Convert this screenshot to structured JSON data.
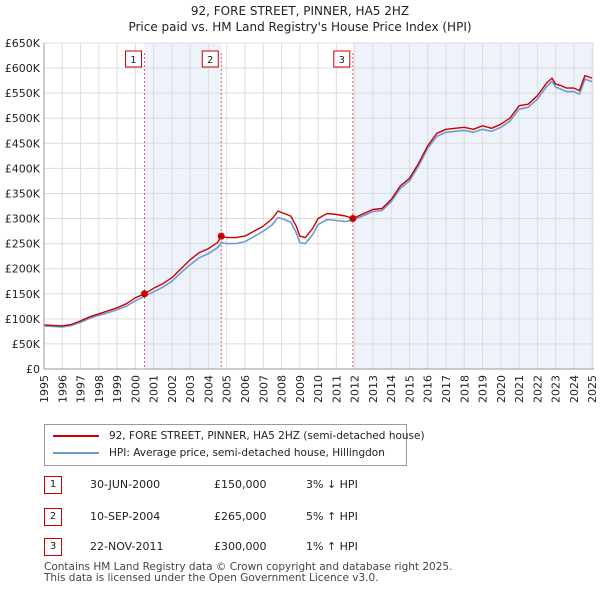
{
  "header": {
    "title": "92, FORE STREET, PINNER, HA5 2HZ",
    "subtitle": "Price paid vs. HM Land Registry's House Price Index (HPI)"
  },
  "chart_data": {
    "type": "line",
    "title": "92, FORE STREET, PINNER, HA5 2HZ",
    "subtitle": "Price paid vs. HM Land Registry's House Price Index (HPI)",
    "xlabel": "",
    "ylabel": "",
    "xlim": [
      1995,
      2025.1
    ],
    "ylim": [
      0,
      650000
    ],
    "x_ticks": [
      "1995",
      "1996",
      "1997",
      "1998",
      "1999",
      "2000",
      "2001",
      "2002",
      "2003",
      "2004",
      "2005",
      "2006",
      "2007",
      "2008",
      "2009",
      "2010",
      "2011",
      "2012",
      "2013",
      "2014",
      "2015",
      "2016",
      "2017",
      "2018",
      "2019",
      "2020",
      "2021",
      "2022",
      "2023",
      "2024",
      "2025"
    ],
    "y_ticks": [
      {
        "value": 0,
        "label": "£0"
      },
      {
        "value": 50000,
        "label": "£50K"
      },
      {
        "value": 100000,
        "label": "£100K"
      },
      {
        "value": 150000,
        "label": "£150K"
      },
      {
        "value": 200000,
        "label": "£200K"
      },
      {
        "value": 250000,
        "label": "£250K"
      },
      {
        "value": 300000,
        "label": "£300K"
      },
      {
        "value": 350000,
        "label": "£350K"
      },
      {
        "value": 400000,
        "label": "£400K"
      },
      {
        "value": 450000,
        "label": "£450K"
      },
      {
        "value": 500000,
        "label": "£500K"
      },
      {
        "value": 550000,
        "label": "£550K"
      },
      {
        "value": 600000,
        "label": "£600K"
      },
      {
        "value": 650000,
        "label": "£650K"
      }
    ],
    "grid": true,
    "shaded_regions": [
      {
        "from": 2000.5,
        "to": 2004.7
      },
      {
        "from": 2011.9,
        "to": 2025.1
      }
    ],
    "series": [
      {
        "name": "92, FORE STREET, PINNER, HA5 2HZ (semi-detached house)",
        "color": "#cc0000",
        "x": [
          1995,
          1995.5,
          1996,
          1996.5,
          1997,
          1997.5,
          1998,
          1998.5,
          1999,
          1999.5,
          2000,
          2000.5,
          2001,
          2001.5,
          2002,
          2002.5,
          2003,
          2003.5,
          2004,
          2004.5,
          2004.7,
          2005,
          2005.5,
          2006,
          2006.5,
          2007,
          2007.5,
          2007.8,
          2008,
          2008.5,
          2008.8,
          2009,
          2009.3,
          2009.7,
          2010,
          2010.5,
          2011,
          2011.5,
          2011.9,
          2012.5,
          2013,
          2013.5,
          2014,
          2014.5,
          2015,
          2015.5,
          2016,
          2016.5,
          2017,
          2017.5,
          2018,
          2018.5,
          2019,
          2019.5,
          2020,
          2020.5,
          2021,
          2021.5,
          2022,
          2022.5,
          2022.8,
          2023,
          2023.3,
          2023.6,
          2024,
          2024.3,
          2024.6,
          2025
        ],
        "values": [
          88000,
          87000,
          86000,
          89000,
          96000,
          104000,
          110000,
          116000,
          122000,
          130000,
          142000,
          150000,
          161000,
          170000,
          182000,
          200000,
          218000,
          232000,
          240000,
          252000,
          265000,
          262000,
          262000,
          265000,
          275000,
          285000,
          300000,
          315000,
          312000,
          305000,
          285000,
          265000,
          262000,
          280000,
          300000,
          310000,
          308000,
          305000,
          300000,
          310000,
          318000,
          320000,
          338000,
          365000,
          380000,
          410000,
          445000,
          470000,
          478000,
          480000,
          482000,
          478000,
          485000,
          480000,
          488000,
          500000,
          525000,
          528000,
          545000,
          570000,
          580000,
          568000,
          565000,
          560000,
          560000,
          555000,
          585000,
          580000
        ]
      },
      {
        "name": "HPI: Average price, semi-detached house, Hillingdon",
        "color": "#6b9bd2",
        "x": [
          1995,
          1995.5,
          1996,
          1996.5,
          1997,
          1997.5,
          1998,
          1998.5,
          1999,
          1999.5,
          2000,
          2000.5,
          2001,
          2001.5,
          2002,
          2002.5,
          2003,
          2003.5,
          2004,
          2004.5,
          2004.7,
          2005,
          2005.5,
          2006,
          2006.5,
          2007,
          2007.5,
          2007.8,
          2008,
          2008.5,
          2008.8,
          2009,
          2009.3,
          2009.7,
          2010,
          2010.5,
          2011,
          2011.5,
          2011.9,
          2012.5,
          2013,
          2013.5,
          2014,
          2014.5,
          2015,
          2015.5,
          2016,
          2016.5,
          2017,
          2017.5,
          2018,
          2018.5,
          2019,
          2019.5,
          2020,
          2020.5,
          2021,
          2021.5,
          2022,
          2022.5,
          2022.8,
          2023,
          2023.3,
          2023.6,
          2024,
          2024.3,
          2024.6,
          2025
        ],
        "values": [
          86000,
          85000,
          84000,
          87000,
          93000,
          101000,
          107000,
          112000,
          118000,
          125000,
          136000,
          145000,
          154000,
          163000,
          175000,
          192000,
          208000,
          222000,
          230000,
          242000,
          252000,
          250000,
          250000,
          254000,
          264000,
          275000,
          288000,
          302000,
          300000,
          293000,
          272000,
          252000,
          250000,
          268000,
          288000,
          298000,
          296000,
          294000,
          297000,
          306000,
          314000,
          316000,
          334000,
          360000,
          375000,
          405000,
          440000,
          464000,
          472000,
          474000,
          476000,
          472000,
          478000,
          474000,
          482000,
          494000,
          518000,
          522000,
          538000,
          563000,
          573000,
          562000,
          558000,
          553000,
          553000,
          548000,
          578000,
          573000
        ]
      }
    ],
    "transactions": [
      {
        "marker": "1",
        "x": 2000.5,
        "value": 150000,
        "date": "30-JUN-2000",
        "price": "£150,000",
        "hpi": "3% ↓ HPI"
      },
      {
        "marker": "2",
        "x": 2004.7,
        "value": 265000,
        "date": "10-SEP-2004",
        "price": "£265,000",
        "hpi": "5% ↑ HPI"
      },
      {
        "marker": "3",
        "x": 2011.9,
        "value": 300000,
        "date": "22-NOV-2011",
        "price": "£300,000",
        "hpi": "1% ↑ HPI"
      }
    ]
  },
  "legend": {
    "items": [
      {
        "label": "92, FORE STREET, PINNER, HA5 2HZ (semi-detached house)",
        "color": "#cc0000"
      },
      {
        "label": "HPI: Average price, semi-detached house, Hillingdon",
        "color": "#6b9bd2"
      }
    ]
  },
  "footer": {
    "line1": "Contains HM Land Registry data © Crown copyright and database right 2025.",
    "line2": "This data is licensed under the Open Government Licence v3.0."
  }
}
